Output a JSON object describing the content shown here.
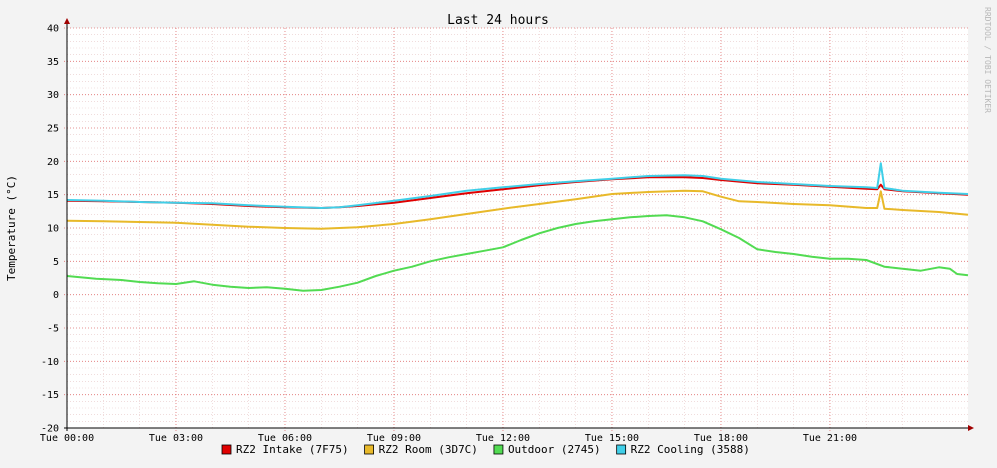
{
  "chart_data": {
    "type": "line",
    "title": "Last 24 hours",
    "ylabel": "Temperature (°C)",
    "ylim": [
      -20,
      40
    ],
    "yticks": [
      40,
      35,
      30,
      25,
      20,
      15,
      10,
      5,
      0,
      -5,
      -10,
      -15,
      -20
    ],
    "xlim_hours": [
      0,
      24.8
    ],
    "xticks": [
      {
        "hour": 0,
        "label": "Tue 00:00"
      },
      {
        "hour": 3,
        "label": "Tue 03:00"
      },
      {
        "hour": 6,
        "label": "Tue 06:00"
      },
      {
        "hour": 9,
        "label": "Tue 09:00"
      },
      {
        "hour": 12,
        "label": "Tue 12:00"
      },
      {
        "hour": 15,
        "label": "Tue 15:00"
      },
      {
        "hour": 18,
        "label": "Tue 18:00"
      },
      {
        "hour": 21,
        "label": "Tue 21:00"
      }
    ],
    "grid": true,
    "legend_position": "bottom",
    "watermark": "RRDTOOL / TOBI OETIKER",
    "series": [
      {
        "name": "RZ2 Intake (7F75)",
        "color": "#e00000",
        "points": [
          [
            0,
            14.1
          ],
          [
            1,
            14.0
          ],
          [
            2,
            13.9
          ],
          [
            3,
            13.8
          ],
          [
            4,
            13.6
          ],
          [
            5,
            13.3
          ],
          [
            6,
            13.1
          ],
          [
            7,
            13.0
          ],
          [
            7.5,
            13.1
          ],
          [
            8,
            13.3
          ],
          [
            9,
            13.8
          ],
          [
            10,
            14.5
          ],
          [
            11,
            15.2
          ],
          [
            12,
            15.8
          ],
          [
            13,
            16.4
          ],
          [
            14,
            16.9
          ],
          [
            15,
            17.3
          ],
          [
            16,
            17.6
          ],
          [
            17,
            17.6
          ],
          [
            17.5,
            17.5
          ],
          [
            18,
            17.2
          ],
          [
            19,
            16.7
          ],
          [
            20,
            16.5
          ],
          [
            21,
            16.2
          ],
          [
            22,
            15.9
          ],
          [
            22.3,
            15.8
          ],
          [
            22.4,
            16.5
          ],
          [
            22.5,
            15.8
          ],
          [
            23,
            15.5
          ],
          [
            24,
            15.2
          ],
          [
            24.8,
            15.0
          ]
        ]
      },
      {
        "name": "RZ2 Room (3D7C)",
        "color": "#e8b92a",
        "points": [
          [
            0,
            11.1
          ],
          [
            1,
            11.0
          ],
          [
            2,
            10.9
          ],
          [
            3,
            10.8
          ],
          [
            4,
            10.5
          ],
          [
            5,
            10.2
          ],
          [
            6,
            10.0
          ],
          [
            7,
            9.9
          ],
          [
            8,
            10.1
          ],
          [
            9,
            10.6
          ],
          [
            10,
            11.3
          ],
          [
            11,
            12.1
          ],
          [
            12,
            12.9
          ],
          [
            13,
            13.6
          ],
          [
            14,
            14.3
          ],
          [
            15,
            15.1
          ],
          [
            16,
            15.4
          ],
          [
            17,
            15.6
          ],
          [
            17.5,
            15.5
          ],
          [
            18,
            14.7
          ],
          [
            18.5,
            14.0
          ],
          [
            19,
            13.9
          ],
          [
            20,
            13.6
          ],
          [
            21,
            13.4
          ],
          [
            22,
            13.0
          ],
          [
            22.3,
            13.0
          ],
          [
            22.4,
            15.5
          ],
          [
            22.5,
            12.9
          ],
          [
            23,
            12.7
          ],
          [
            24,
            12.4
          ],
          [
            24.8,
            12.0
          ]
        ]
      },
      {
        "name": "Outdoor (2745)",
        "color": "#52db52",
        "points": [
          [
            0,
            2.8
          ],
          [
            0.8,
            2.4
          ],
          [
            1.5,
            2.2
          ],
          [
            2,
            1.9
          ],
          [
            2.5,
            1.7
          ],
          [
            3,
            1.6
          ],
          [
            3.5,
            2.0
          ],
          [
            4,
            1.5
          ],
          [
            4.5,
            1.2
          ],
          [
            5,
            1.0
          ],
          [
            5.5,
            1.1
          ],
          [
            6,
            0.9
          ],
          [
            6.5,
            0.6
          ],
          [
            7,
            0.7
          ],
          [
            7.5,
            1.2
          ],
          [
            8,
            1.8
          ],
          [
            8.5,
            2.8
          ],
          [
            9,
            3.6
          ],
          [
            9.5,
            4.2
          ],
          [
            10,
            5.0
          ],
          [
            10.5,
            5.6
          ],
          [
            11,
            6.1
          ],
          [
            11.5,
            6.6
          ],
          [
            12,
            7.1
          ],
          [
            12.5,
            8.2
          ],
          [
            13,
            9.2
          ],
          [
            13.5,
            10.0
          ],
          [
            14,
            10.6
          ],
          [
            14.5,
            11.0
          ],
          [
            15,
            11.3
          ],
          [
            15.5,
            11.6
          ],
          [
            16,
            11.8
          ],
          [
            16.5,
            11.9
          ],
          [
            17,
            11.6
          ],
          [
            17.5,
            11.0
          ],
          [
            18,
            9.8
          ],
          [
            18.5,
            8.5
          ],
          [
            19,
            6.8
          ],
          [
            19.5,
            6.4
          ],
          [
            20,
            6.1
          ],
          [
            20.5,
            5.7
          ],
          [
            21,
            5.4
          ],
          [
            21.5,
            5.4
          ],
          [
            22,
            5.2
          ],
          [
            22.5,
            4.2
          ],
          [
            23,
            3.9
          ],
          [
            23.5,
            3.6
          ],
          [
            24,
            4.1
          ],
          [
            24.3,
            3.9
          ],
          [
            24.5,
            3.1
          ],
          [
            24.8,
            2.9
          ]
        ]
      },
      {
        "name": "RZ2 Cooling (3588)",
        "color": "#40cfe8",
        "points": [
          [
            0,
            14.2
          ],
          [
            1,
            14.1
          ],
          [
            2,
            13.9
          ],
          [
            3,
            13.8
          ],
          [
            4,
            13.7
          ],
          [
            5,
            13.4
          ],
          [
            6,
            13.2
          ],
          [
            7,
            13.0
          ],
          [
            7.5,
            13.1
          ],
          [
            8,
            13.4
          ],
          [
            9,
            14.1
          ],
          [
            10,
            14.8
          ],
          [
            11,
            15.6
          ],
          [
            12,
            16.1
          ],
          [
            13,
            16.6
          ],
          [
            14,
            17.0
          ],
          [
            15,
            17.4
          ],
          [
            16,
            17.8
          ],
          [
            17,
            17.9
          ],
          [
            17.5,
            17.8
          ],
          [
            18,
            17.4
          ],
          [
            19,
            16.9
          ],
          [
            20,
            16.6
          ],
          [
            21,
            16.3
          ],
          [
            22,
            16.1
          ],
          [
            22.3,
            16.0
          ],
          [
            22.4,
            19.7
          ],
          [
            22.5,
            16.0
          ],
          [
            23,
            15.6
          ],
          [
            24,
            15.3
          ],
          [
            24.8,
            15.1
          ]
        ]
      }
    ]
  }
}
